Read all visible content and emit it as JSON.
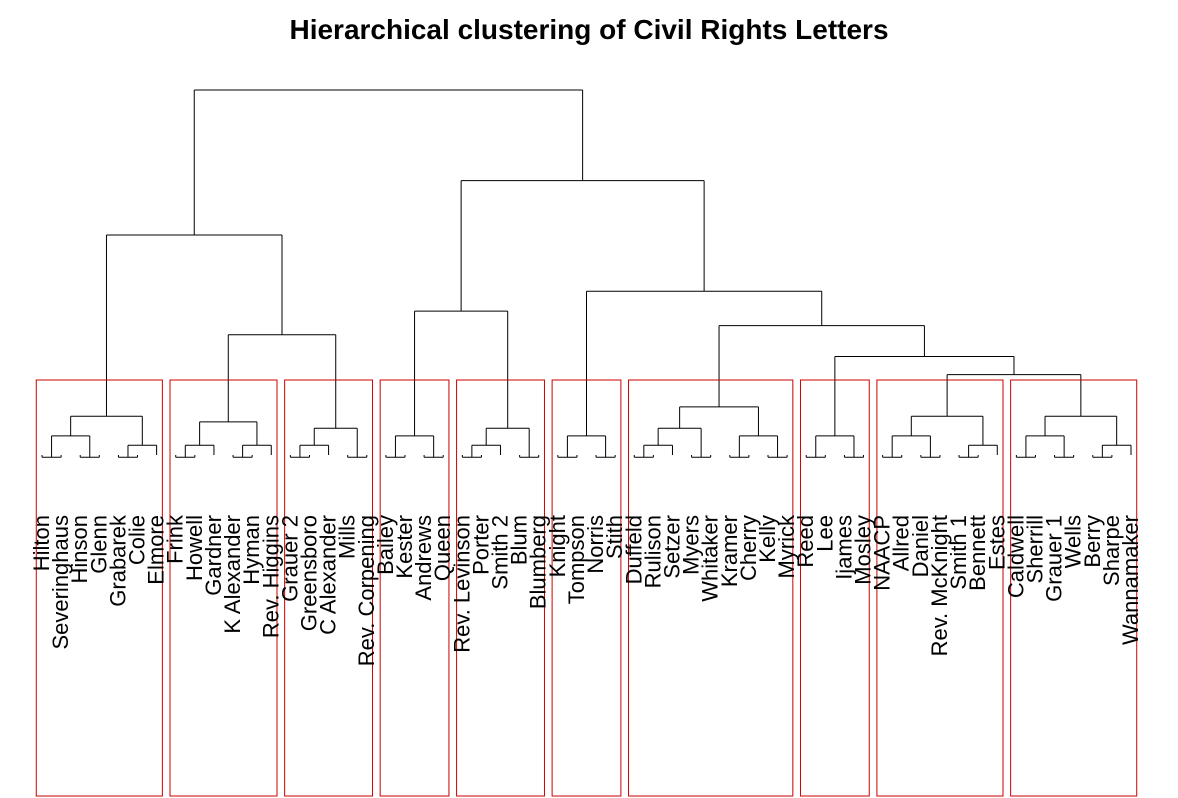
{
  "chart_data": {
    "type": "dendrogram",
    "title": "Hierarchical clustering of Civil Rights Letters",
    "leaves": [
      "Hilton",
      "Severinghaus",
      "Hinson",
      "Glenn",
      "Grabarek",
      "Colie",
      "Elmore",
      "Frink",
      "Howell",
      "Gardner",
      "K Alexander",
      "Hyman",
      "Rev. Higgins",
      "Grauer 2",
      "Greensboro",
      "C Alexander",
      "Mills",
      "Rev. Corpening",
      "Bailey",
      "Kester",
      "Andrews",
      "Queen",
      "Rev. Levinson",
      "Porter",
      "Smith 2",
      "Blum",
      "Blumberg",
      "Knight",
      "Tompson",
      "Norris",
      "Stith",
      "Duffeld",
      "Rulison",
      "Setzer",
      "Myers",
      "Whitaker",
      "Kramer",
      "Cherry",
      "Kelly",
      "Myrick",
      "Reed",
      "Lee",
      "Ijames",
      "Mosley",
      "NAACP",
      "Allred",
      "Daniel",
      "Rev. McKnight",
      "Smith 1",
      "Bennett",
      "Estes",
      "Caldwell",
      "Sherrill",
      "Grauer 1",
      "Wells",
      "Berry",
      "Sharpe",
      "Wannamaker"
    ],
    "merges": [
      [
        1,
        2,
        2.2
      ],
      [
        3,
        4,
        3.0
      ],
      [
        0,
        8,
        3.5
      ],
      [
        5,
        6,
        3.9
      ],
      [
        9,
        10,
        4.5
      ],
      [
        7,
        11,
        5.2
      ],
      [
        12,
        13,
        5.8
      ],
      [
        14,
        15,
        6.2
      ],
      [
        16,
        17,
        6.8
      ],
      [
        18,
        19,
        3.8
      ],
      [
        22,
        23,
        3.3
      ],
      [
        21,
        24,
        5.0
      ],
      [
        20,
        25,
        6.5
      ],
      [
        26,
        27,
        4.8
      ],
      [
        28,
        29,
        7.2
      ],
      [
        35,
        36,
        3.3
      ],
      [
        30,
        31,
        3.2
      ],
      [
        33,
        37,
        4.1
      ],
      [
        32,
        38,
        5.5
      ],
      [
        34,
        39,
        6.9
      ],
      [
        40,
        41,
        8.1
      ],
      [
        43,
        44,
        4.6
      ],
      [
        45,
        46,
        4.0
      ],
      [
        47,
        48,
        5.6
      ],
      [
        49,
        50,
        6.3
      ],
      [
        51,
        52,
        6.0
      ],
      [
        54,
        55,
        6.6
      ],
      [
        56,
        57,
        5.0
      ],
      [
        53,
        58,
        6.5
      ],
      [
        59,
        60,
        7.8
      ],
      [
        61,
        62,
        9.8
      ],
      [
        42,
        63,
        11.5
      ],
      [
        64,
        65,
        4.0
      ],
      [
        67,
        68,
        3.8
      ],
      [
        66,
        69,
        5.5
      ],
      [
        70,
        71,
        6.6
      ],
      [
        72,
        73,
        7.8
      ],
      [
        74,
        75,
        8.7
      ],
      [
        76,
        77,
        12.8
      ],
      [
        78,
        79,
        14.5
      ],
      [
        80,
        81,
        2.9
      ],
      [
        82,
        83,
        5.4
      ],
      [
        84,
        85,
        3.7
      ],
      [
        86,
        87,
        5.1
      ],
      [
        88,
        89,
        6.6
      ],
      [
        90,
        91,
        8.1
      ],
      [
        93,
        94,
        3.7
      ],
      [
        95,
        96,
        4.7
      ],
      [
        97,
        98,
        6.5
      ],
      [
        92,
        99,
        7.0
      ],
      [
        100,
        101,
        8.3
      ],
      [
        102,
        103,
        3.5
      ],
      [
        104,
        105,
        4.2
      ],
      [
        106,
        107,
        5.7
      ],
      [
        108,
        109,
        7.1
      ],
      [
        110,
        111,
        8.2
      ],
      [
        103,
        104,
        3.9
      ],
      [
        115,
        105,
        4.6
      ],
      [
        116,
        106,
        6.2
      ],
      [
        107,
        108,
        4.5
      ],
      [
        118,
        109,
        5.8
      ],
      [
        119,
        110,
        7.5
      ],
      [
        117,
        120,
        8.5
      ],
      [
        111,
        112,
        3.0
      ],
      [
        113,
        114,
        4.1
      ],
      [
        124,
        123,
        5.3
      ],
      [
        122,
        125,
        6.9
      ]
    ],
    "clusters": [
      [
        0,
        6
      ],
      [
        7,
        12
      ],
      [
        13,
        17
      ],
      [
        18,
        21
      ],
      [
        22,
        26
      ],
      [
        27,
        30
      ],
      [
        31,
        39
      ],
      [
        40,
        43
      ],
      [
        44,
        50
      ],
      [
        51,
        57
      ]
    ]
  }
}
